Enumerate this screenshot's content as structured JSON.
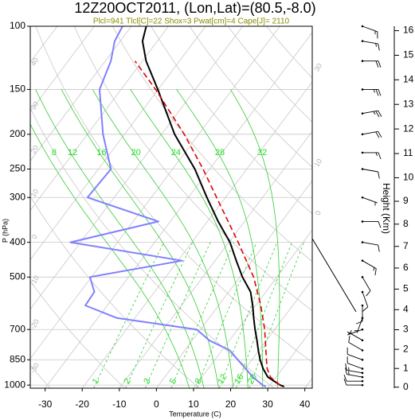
{
  "chart_data": {
    "type": "skewt",
    "title": "12Z20OCT2011, (Lon,Lat)=(80.5,-8.0)",
    "subtitle": "Plcl=941 Tlcl[C]=22 Shox=3 Pwat[cm]=4 Cape[J]= 2110",
    "subtitle_color": "#8b8b00",
    "xlabel": "Temperature (C)",
    "ylabel": "P (hPa)",
    "y2label": "Height (Km)",
    "xlim": [
      -34,
      42
    ],
    "xticks": [
      -30,
      -20,
      -10,
      0,
      10,
      20,
      30,
      40
    ],
    "ylim": [
      1020,
      100
    ],
    "yticks": [
      100,
      150,
      200,
      250,
      300,
      400,
      500,
      700,
      850,
      1000
    ],
    "log_y": true,
    "y2ticks": [
      0,
      1,
      2,
      3,
      4,
      5,
      6,
      7,
      8,
      9,
      10,
      11,
      12,
      13,
      14,
      15,
      16
    ],
    "grid": true,
    "series": [
      {
        "color": "#000000",
        "style": "solid",
        "pressure": [
          1010,
          1000,
          950,
          900,
          850,
          800,
          750,
          700,
          650,
          600,
          550,
          500,
          450,
          400,
          350,
          300,
          250,
          200,
          150,
          125,
          110,
          100
        ],
        "values": [
          34.1,
          32.7,
          27.8,
          24.8,
          22.2,
          19.8,
          17.4,
          14.7,
          12.0,
          9.2,
          5.9,
          0.7,
          -4.3,
          -9.7,
          -17.1,
          -25.0,
          -34.0,
          -46.5,
          -60.1,
          -69.0,
          -74.0,
          -76.0
        ]
      },
      {
        "color": "#8080ff",
        "style": "solid",
        "pressure": [
          1010,
          1000,
          950,
          900,
          850,
          800,
          750,
          700,
          650,
          600,
          550,
          500,
          450,
          400,
          350,
          300,
          250,
          200,
          150,
          125,
          110,
          100
        ],
        "values": [
          29.2,
          28.0,
          23.8,
          20.1,
          16.2,
          12.1,
          4.5,
          -1.0,
          -24.9,
          -35.9,
          -36.2,
          -40.4,
          -18.9,
          -52.7,
          -33.2,
          -57.2,
          -56.6,
          -65.8,
          -75.8,
          -78.5,
          -81.5,
          -82.4
        ]
      },
      {
        "color": "#e00000",
        "style": "dashed",
        "pressure": [
          1000,
          950,
          900,
          850,
          700,
          600,
          500,
          400,
          300,
          250,
          200,
          150,
          125
        ],
        "values": [
          32.7,
          28.5,
          25.9,
          23.9,
          17.3,
          11.4,
          3.7,
          -7.5,
          -22.4,
          -31.8,
          -43.9,
          -60.7,
          -72.0
        ]
      }
    ],
    "isotherms": [
      -120,
      -110,
      -100,
      -90,
      -80,
      -70,
      -60,
      -50,
      -40,
      -30,
      -20,
      -10,
      0,
      10,
      20,
      30,
      40
    ],
    "dry_adiabats": [
      -30,
      -10,
      10,
      30,
      50,
      70,
      90,
      110,
      130,
      150,
      170
    ],
    "moist_adiabats": [
      8,
      12,
      16,
      20,
      24,
      28,
      32
    ],
    "mixing_ratios": [
      1,
      2,
      3,
      5,
      8,
      12,
      16,
      20
    ],
    "left_labels": [
      40,
      30,
      20,
      10,
      0,
      -10,
      -20,
      -30
    ],
    "right_labels": [
      30,
      10,
      0
    ],
    "wind": {
      "pressure": [
        1000,
        975,
        950,
        925,
        900,
        850,
        800,
        750,
        700,
        650,
        600,
        550,
        500,
        450,
        400,
        350,
        300,
        250,
        225,
        200,
        175,
        150,
        125,
        110,
        100
      ],
      "speed": [
        10,
        10,
        15,
        15,
        10,
        10,
        10,
        5,
        5,
        5,
        10,
        10,
        10,
        15,
        10,
        10,
        5,
        10,
        15,
        20,
        25,
        25,
        20,
        15,
        15
      ],
      "direction": [
        270,
        270,
        280,
        280,
        290,
        290,
        300,
        300,
        250,
        200,
        180,
        160,
        150,
        120,
        100,
        90,
        110,
        100,
        90,
        80,
        80,
        90,
        90,
        100,
        110
      ]
    }
  }
}
